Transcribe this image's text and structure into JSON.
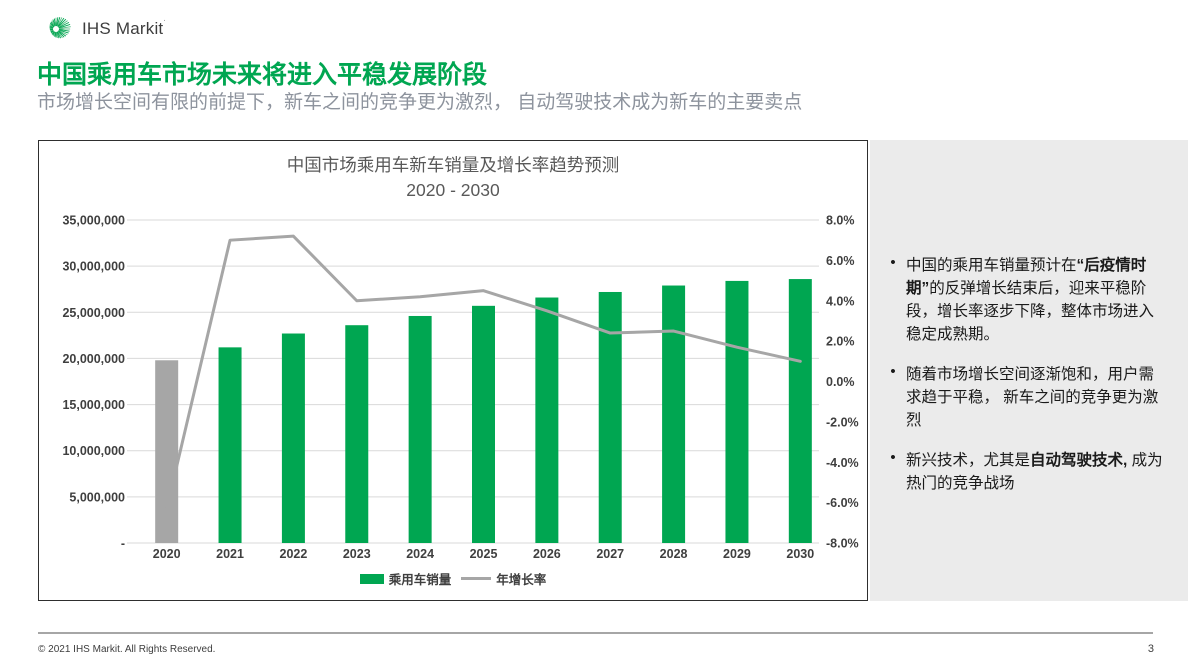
{
  "colors": {
    "brand_green": "#00a651",
    "neutral_gray": "#a6a6a6",
    "grid_gray": "#d9d9d9",
    "axis_text": "#3f3f3f",
    "chart_title_gray": "#595959",
    "subtitle_gray": "#8d939d",
    "sidebar_bg": "#ebebeb"
  },
  "header": {
    "logo_text": "IHS Markit",
    "title": "中国乘用车市场未来将进入平稳发展阶段",
    "subtitle": "市场增长空间有限的前提下，新车之间的竞争更为激烈， 自动驾驶技术成为新车的主要卖点"
  },
  "chart_data": {
    "type": "bar",
    "title": "中国市场乘用车新车销量及增长率趋势预测",
    "subtitle": "2020 - 2030",
    "categories": [
      "2020",
      "2021",
      "2022",
      "2023",
      "2024",
      "2025",
      "2026",
      "2027",
      "2028",
      "2029",
      "2030"
    ],
    "series": [
      {
        "name": "乘用车销量",
        "type": "bar",
        "values": [
          19800000,
          21200000,
          22700000,
          23600000,
          24600000,
          25700000,
          26600000,
          27200000,
          27900000,
          28400000,
          28600000
        ],
        "color": "#00a651",
        "first_bar_color": "#a6a6a6"
      },
      {
        "name": "年增长率",
        "type": "line",
        "unit": "%",
        "values": [
          -6.3,
          7.0,
          7.2,
          4.0,
          4.2,
          4.5,
          3.5,
          2.4,
          2.5,
          1.7,
          1.0
        ],
        "color": "#a6a6a6"
      }
    ],
    "left_axis": {
      "min": 0,
      "max": 35000000,
      "step": 5000000,
      "ticks": [
        "35,000,000",
        "30,000,000",
        "25,000,000",
        "20,000,000",
        "15,000,000",
        "10,000,000",
        "5,000,000",
        "-"
      ]
    },
    "right_axis": {
      "min": -8,
      "max": 8,
      "step": 2,
      "ticks": [
        "8.0%",
        "6.0%",
        "4.0%",
        "2.0%",
        "0.0%",
        "-2.0%",
        "-4.0%",
        "-6.0%",
        "-8.0%"
      ]
    },
    "legend": [
      {
        "label": "乘用车销量",
        "type": "bar"
      },
      {
        "label": "年增长率",
        "type": "line"
      }
    ],
    "grid": true,
    "legend_position": "bottom"
  },
  "sidebar": {
    "bullets": [
      {
        "segments": [
          {
            "text": "中国的乘用车销量预计在",
            "bold": false
          },
          {
            "text": "“后疫情时期”",
            "bold": true
          },
          {
            "text": "的反弹增长结束后，迎来平稳阶段，增长率逐步下降，整体市场进入稳定成熟期。",
            "bold": false
          }
        ]
      },
      {
        "segments": [
          {
            "text": "随着市场增长空间逐渐饱和，用户需求趋于平稳， 新车之间的竞争更为激烈",
            "bold": false
          }
        ]
      },
      {
        "segments": [
          {
            "text": "新兴技术，尤其是",
            "bold": false
          },
          {
            "text": "自动驾驶技术,",
            "bold": true
          },
          {
            "text": " 成为热门的竞争战场",
            "bold": false
          }
        ]
      }
    ]
  },
  "footer": {
    "copyright": "© 2021 IHS Markit. All Rights Reserved.",
    "page": "3"
  }
}
